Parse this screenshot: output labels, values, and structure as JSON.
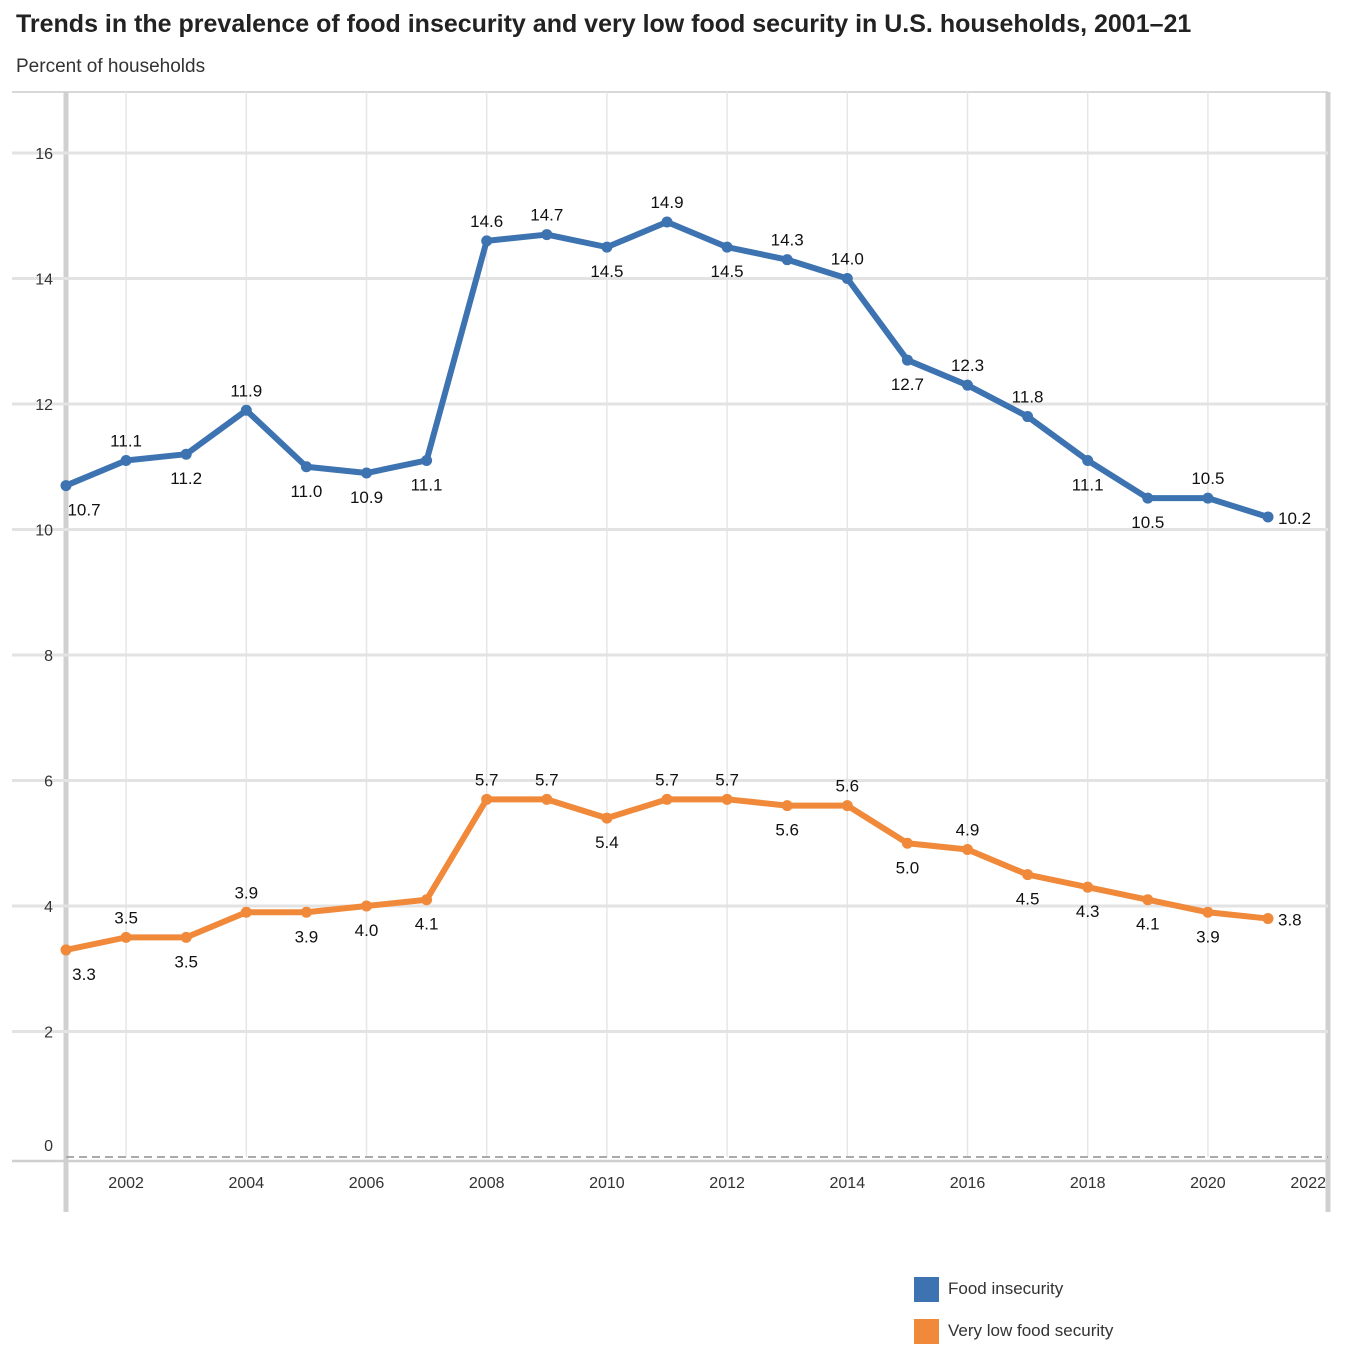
{
  "chart_data": {
    "type": "line",
    "title": "Trends in the prevalence of food insecurity and very low food security in U.S. households, 2001–21",
    "ylabel": "Percent of households",
    "x": [
      2001,
      2002,
      2003,
      2004,
      2005,
      2006,
      2007,
      2008,
      2009,
      2010,
      2011,
      2012,
      2013,
      2014,
      2015,
      2016,
      2017,
      2018,
      2019,
      2020,
      2021
    ],
    "xticks": [
      "2002",
      "2004",
      "2006",
      "2008",
      "2010",
      "2012",
      "2014",
      "2016",
      "2018",
      "2020",
      "2022"
    ],
    "yticks": [
      "0",
      "2",
      "4",
      "6",
      "8",
      "10",
      "12",
      "14",
      "16"
    ],
    "ylim": [
      0,
      17
    ],
    "xlim": [
      2001,
      2022
    ],
    "grid": true,
    "legend_position": "bottom-right",
    "series": [
      {
        "name": "Food insecurity",
        "color": "#3c73b0",
        "values": [
          10.7,
          11.1,
          11.2,
          11.9,
          11.0,
          10.9,
          11.1,
          14.6,
          14.7,
          14.5,
          14.9,
          14.5,
          14.3,
          14.0,
          12.7,
          12.3,
          11.8,
          11.1,
          10.5,
          10.5,
          10.2
        ],
        "labels": [
          "10.7",
          "11.1",
          "11.2",
          "11.9",
          "11.0",
          "10.9",
          "11.1",
          "14.6",
          "14.7",
          "14.5",
          "14.9",
          "14.5",
          "14.3",
          "14.0",
          "12.7",
          "12.3",
          "11.8",
          "11.1",
          "10.5",
          "10.5",
          "10.2"
        ]
      },
      {
        "name": "Very low food security",
        "color": "#f0893a",
        "values": [
          3.3,
          3.5,
          3.5,
          3.9,
          3.9,
          4.0,
          4.1,
          5.7,
          5.7,
          5.4,
          5.7,
          5.7,
          5.6,
          5.6,
          5.0,
          4.9,
          4.5,
          4.3,
          4.1,
          3.9,
          3.8
        ],
        "labels": [
          "3.3",
          "3.5",
          "3.5",
          "3.9",
          "3.9",
          "4.0",
          "4.1",
          "5.7",
          "5.7",
          "5.4",
          "5.7",
          "5.7",
          "5.6",
          "5.6",
          "5.0",
          "4.9",
          "4.5",
          "4.3",
          "4.1",
          "3.9",
          "3.8"
        ]
      }
    ]
  }
}
